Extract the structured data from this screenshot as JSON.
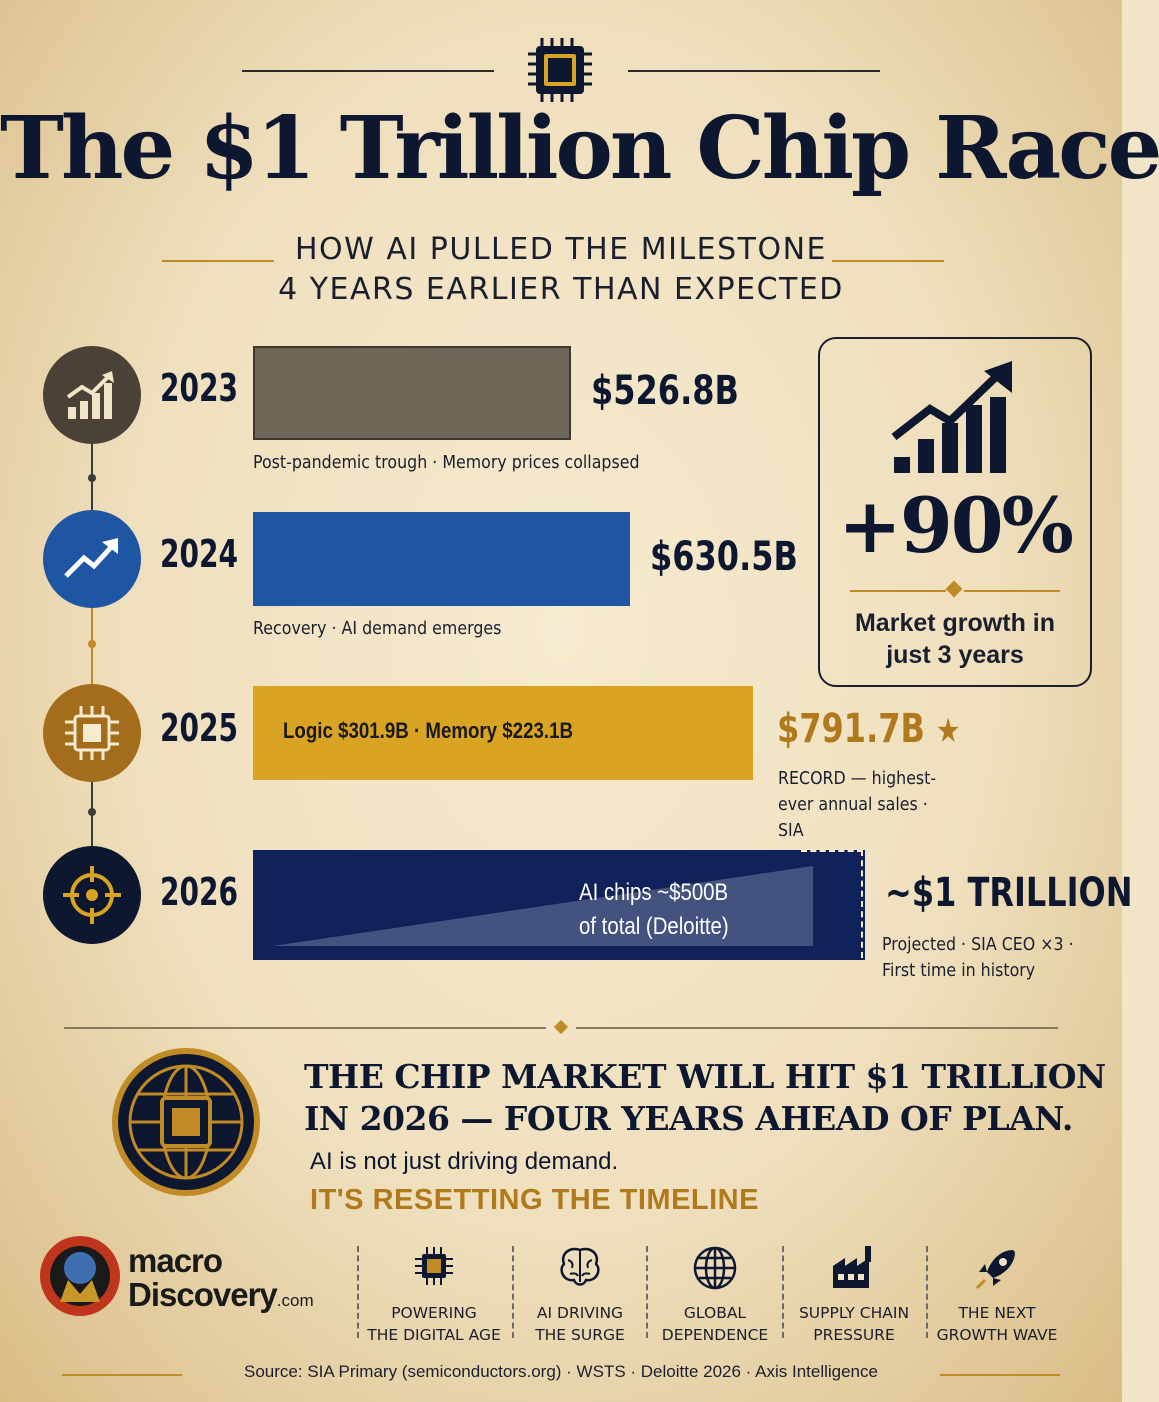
{
  "header": {
    "title": "The $1 Trillion Chip Race",
    "subtitle_line1": "HOW AI PULLED THE MILESTONE",
    "subtitle_line2": "4 YEARS EARLIER THAN EXPECTED"
  },
  "chart_data": {
    "type": "bar",
    "title": "The $1 Trillion Chip Race",
    "orientation": "horizontal",
    "categories": [
      "2023",
      "2024",
      "2025",
      "2026"
    ],
    "values": [
      526.8,
      630.5,
      791.7,
      1000
    ],
    "unit": "$B",
    "value_labels": [
      "$526.8B",
      "$630.5B",
      "$791.7B",
      "~$1 TRILLION"
    ],
    "notes": [
      "Post-pandemic trough · Memory prices collapsed",
      "Recovery  ·  AI demand emerges",
      "RECORD — highest-ever annual sales · SIA",
      "Projected · SIA CEO ×3 · First time in history"
    ],
    "bar_colors": [
      "#6e6657",
      "#1f56a3",
      "#d9a324",
      "#11215a"
    ],
    "segment_2025": {
      "logic": 301.9,
      "memory": 223.1,
      "label": "Logic $301.9B  ·  Memory $223.1B"
    },
    "segment_2026": {
      "ai_chips": 500,
      "label_line1": "AI chips ~$500B",
      "label_line2": "of total (Deloitte)"
    },
    "highlight": "2025 record",
    "grid": false
  },
  "growth_card": {
    "value": "+90%",
    "caption_line1": "Market growth in",
    "caption_line2": "just 3 years"
  },
  "callout": {
    "headline_line1": "THE CHIP MARKET WILL HIT $1 TRILLION",
    "headline_line2": "IN 2026 — FOUR YEARS AHEAD OF PLAN.",
    "body": "AI is not just driving demand.",
    "emphasis": "IT'S RESETTING THE TIMELINE"
  },
  "brand": {
    "name_line1": "macro",
    "name_line2": "Discovery",
    "suffix": ".com"
  },
  "footer_items": [
    {
      "icon": "chip-icon",
      "line1": "POWERING",
      "line2": "THE DIGITAL AGE"
    },
    {
      "icon": "brain-icon",
      "line1": "AI DRIVING",
      "line2": "THE SURGE"
    },
    {
      "icon": "globe-icon",
      "line1": "GLOBAL",
      "line2": "DEPENDENCE"
    },
    {
      "icon": "factory-icon",
      "line1": "SUPPLY CHAIN",
      "line2": "PRESSURE"
    },
    {
      "icon": "rocket-icon",
      "line1": "THE NEXT",
      "line2": "GROWTH WAVE"
    }
  ],
  "source": "Source: SIA Primary (semiconductors.org) · WSTS · Deloitte 2026 · Axis Intelligence",
  "colors": {
    "navy": "#0e1730",
    "gold": "#c08a24",
    "blue": "#1f56a3",
    "taupe": "#6e6657"
  }
}
